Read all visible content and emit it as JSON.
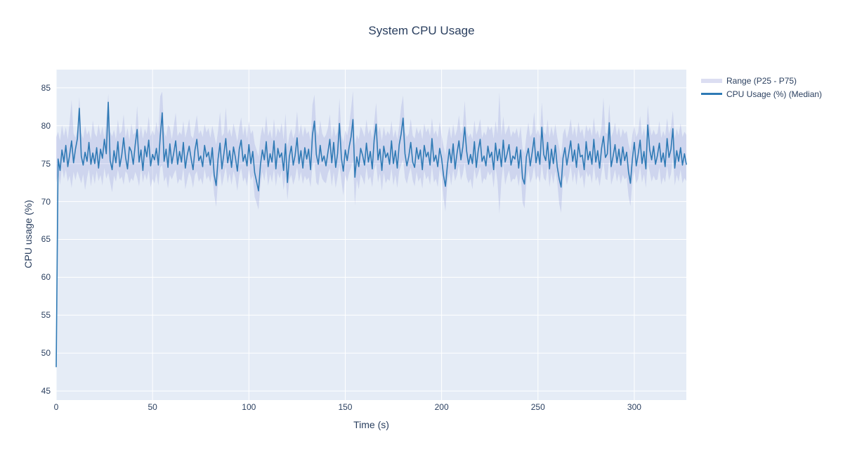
{
  "page": {
    "background": "#ffffff"
  },
  "chart_data": {
    "type": "line",
    "title": "System CPU Usage",
    "xlabel": "Time (s)",
    "ylabel": "CPU usage (%)",
    "x_ticks": [
      0,
      50,
      100,
      150,
      200,
      250,
      300
    ],
    "y_ticks": [
      45,
      50,
      55,
      60,
      65,
      70,
      75,
      80,
      85
    ],
    "x_range": [
      0,
      327
    ],
    "y_range": [
      43.8,
      87.4
    ],
    "grid": true,
    "legend_position": "top-right-outside",
    "colors": {
      "plot_background": "#e5ecf6",
      "gridline": "#ffffff",
      "median_line": "#2f7ab5",
      "band_fill": "rgba(134,141,214,0.24)",
      "band_legend_swatch": "#dcdef2",
      "text": "#2a3f5f"
    },
    "series": [
      {
        "name": "Range (P25 - P75)",
        "type": "band",
        "t_start": 0,
        "t_step": 1,
        "p75": [
          78.5,
          79.2,
          78.0,
          80.1,
          78.6,
          79.8,
          78.2,
          80.5,
          83.4,
          79.0,
          78.4,
          79.6,
          83.8,
          79.1,
          78.3,
          80.0,
          78.8,
          79.4,
          78.1,
          80.7,
          79.0,
          78.5,
          80.2,
          78.7,
          79.9,
          78.3,
          80.4,
          84.2,
          79.2,
          78.6,
          79.5,
          78.2,
          80.8,
          78.9,
          79.3,
          81.5,
          78.4,
          79.7,
          78.0,
          80.3,
          78.8,
          79.1,
          82.6,
          78.5,
          80.0,
          78.3,
          79.6,
          78.9,
          81.2,
          78.6,
          79.4,
          78.7,
          80.5,
          79.0,
          83.9,
          84.5,
          79.3,
          78.5,
          80.1,
          79.8,
          78.2,
          79.9,
          81.7,
          78.6,
          79.2,
          78.8,
          80.6,
          78.4,
          79.5,
          80.9,
          78.7,
          78.3,
          79.8,
          81.4,
          78.9,
          79.4,
          78.5,
          80.2,
          79.1,
          79.7,
          78.4,
          80.0,
          78.8,
          77.5,
          79.3,
          81.8,
          78.6,
          79.0,
          82.4,
          78.9,
          79.6,
          78.5,
          80.3,
          79.2,
          77.9,
          79.8,
          81.1,
          78.7,
          80.0,
          78.3,
          80.6,
          78.9,
          79.4,
          77.6,
          76.8,
          75.9,
          78.5,
          79.9,
          78.8,
          81.3,
          78.6,
          79.5,
          78.2,
          80.9,
          78.4,
          79.7,
          79.0,
          80.4,
          78.1,
          81.6,
          77.2,
          78.8,
          79.6,
          78.3,
          79.1,
          81.9,
          78.7,
          80.2,
          78.5,
          79.9,
          78.9,
          79.3,
          78.0,
          82.8,
          84.1,
          79.5,
          78.6,
          80.7,
          79.0,
          78.4,
          78.8,
          79.7,
          81.5,
          78.3,
          80.0,
          78.6,
          79.2,
          83.6,
          78.9,
          77.8,
          79.4,
          78.7,
          80.1,
          82.2,
          84.6,
          77.4,
          78.8,
          78.2,
          79.9,
          79.3,
          78.5,
          80.8,
          78.9,
          79.6,
          78.3,
          80.4,
          83.0,
          79.1,
          79.8,
          78.0,
          79.9,
          78.6,
          79.3,
          78.8,
          80.6,
          78.4,
          79.5,
          78.2,
          80.0,
          82.5,
          84.0,
          79.2,
          78.5,
          79.0,
          80.9,
          78.7,
          78.3,
          79.8,
          78.9,
          79.6,
          78.2,
          80.3,
          79.1,
          79.7,
          78.6,
          81.0,
          78.8,
          79.4,
          78.4,
          80.5,
          78.7,
          77.3,
          76.1,
          78.5,
          79.9,
          78.3,
          80.2,
          78.6,
          79.5,
          81.4,
          78.9,
          79.8,
          83.3,
          79.3,
          78.5,
          79.0,
          78.2,
          80.7,
          78.8,
          79.6,
          80.9,
          78.4,
          79.2,
          78.7,
          80.0,
          79.4,
          79.9,
          78.3,
          80.6,
          78.9,
          84.4,
          78.6,
          81.2,
          78.8,
          79.5,
          80.1,
          78.5,
          79.3,
          78.9,
          79.7,
          78.3,
          79.9,
          77.0,
          76.4,
          78.7,
          80.4,
          78.5,
          79.1,
          81.8,
          78.8,
          79.5,
          78.6,
          83.1,
          79.2,
          78.8,
          80.8,
          78.4,
          79.9,
          78.6,
          80.2,
          78.5,
          77.1,
          75.8,
          78.9,
          79.7,
          78.3,
          79.4,
          80.9,
          78.7,
          79.9,
          78.4,
          80.5,
          79.0,
          79.6,
          78.2,
          80.1,
          79.2,
          79.8,
          78.6,
          81.1,
          78.8,
          79.4,
          78.3,
          79.9,
          83.7,
          79.1,
          78.9,
          82.9,
          78.5,
          79.2,
          80.4,
          78.7,
          79.8,
          78.4,
          79.6,
          78.9,
          79.3,
          77.7,
          76.6,
          78.8,
          80.0,
          78.5,
          79.1,
          81.3,
          78.6,
          79.7,
          78.2,
          82.7,
          79.9,
          78.7,
          79.5,
          78.8,
          79.0,
          80.6,
          78.4,
          79.3,
          78.6,
          81.0,
          78.9,
          79.8,
          82.0,
          78.3,
          79.6,
          78.7,
          80.3,
          78.5,
          79.2,
          78.8
        ],
        "p25": [
          72.5,
          73.8,
          72.2,
          74.5,
          73.0,
          74.2,
          72.6,
          73.4,
          71.8,
          73.9,
          72.8,
          74.0,
          73.2,
          72.4,
          73.6,
          71.5,
          73.1,
          74.3,
          72.0,
          73.7,
          72.3,
          74.1,
          72.7,
          73.5,
          72.1,
          74.4,
          73.0,
          73.8,
          72.5,
          71.2,
          73.4,
          72.6,
          74.2,
          72.9,
          73.3,
          72.2,
          74.0,
          73.6,
          72.4,
          73.1,
          72.7,
          73.9,
          73.2,
          72.0,
          74.3,
          72.5,
          73.7,
          72.8,
          74.1,
          71.9,
          73.0,
          72.4,
          73.8,
          72.1,
          74.5,
          74.8,
          72.6,
          73.3,
          71.7,
          73.5,
          72.9,
          73.6,
          74.2,
          72.3,
          73.0,
          72.7,
          74.4,
          71.6,
          72.8,
          73.9,
          73.2,
          71.8,
          73.5,
          74.0,
          72.6,
          73.1,
          72.2,
          74.3,
          72.9,
          73.4,
          72.5,
          73.8,
          70.9,
          69.3,
          72.7,
          74.1,
          72.0,
          73.3,
          74.6,
          72.4,
          73.7,
          72.2,
          74.0,
          73.1,
          71.4,
          73.5,
          74.4,
          72.6,
          73.2,
          72.0,
          74.2,
          72.8,
          73.4,
          70.6,
          69.8,
          68.9,
          72.3,
          73.9,
          72.7,
          74.5,
          72.1,
          73.6,
          72.5,
          74.3,
          72.0,
          73.8,
          73.0,
          74.1,
          71.5,
          73.3,
          70.2,
          72.9,
          73.5,
          72.2,
          73.1,
          74.6,
          72.6,
          73.9,
          72.3,
          73.4,
          72.8,
          73.2,
          71.9,
          74.7,
          75.2,
          72.5,
          72.1,
          74.0,
          73.0,
          72.6,
          72.4,
          73.7,
          74.4,
          72.0,
          73.9,
          71.8,
          73.2,
          74.9,
          72.7,
          70.8,
          73.5,
          72.6,
          73.8,
          74.5,
          75.4,
          69.5,
          72.9,
          71.6,
          73.6,
          73.0,
          72.2,
          74.6,
          72.8,
          73.3,
          71.9,
          74.2,
          75.0,
          72.5,
          73.7,
          71.4,
          73.8,
          72.4,
          73.0,
          72.7,
          74.4,
          72.1,
          73.5,
          71.8,
          74.0,
          74.8,
          75.5,
          73.1,
          72.3,
          73.6,
          74.5,
          72.8,
          72.0,
          73.9,
          72.6,
          73.2,
          71.7,
          74.1,
          72.9,
          73.4,
          72.2,
          74.7,
          72.5,
          73.0,
          71.9,
          74.3,
          73.3,
          70.4,
          68.7,
          72.6,
          73.8,
          72.1,
          74.2,
          72.7,
          73.5,
          74.9,
          72.8,
          73.6,
          75.1,
          73.2,
          72.4,
          73.0,
          71.6,
          74.4,
          72.9,
          73.7,
          74.6,
          72.3,
          73.1,
          72.8,
          74.0,
          73.4,
          73.9,
          71.8,
          74.5,
          72.6,
          68.4,
          72.7,
          74.8,
          72.2,
          73.3,
          74.1,
          72.5,
          73.0,
          72.9,
          73.6,
          72.0,
          73.8,
          69.9,
          69.1,
          72.6,
          74.3,
          72.4,
          73.2,
          74.7,
          72.8,
          73.4,
          72.5,
          75.0,
          73.1,
          72.7,
          74.6,
          71.9,
          73.8,
          72.3,
          74.0,
          72.6,
          69.7,
          68.5,
          72.9,
          73.5,
          72.2,
          73.3,
          74.8,
          72.5,
          73.9,
          72.1,
          74.4,
          73.0,
          73.5,
          71.7,
          74.0,
          73.2,
          73.7,
          72.4,
          74.9,
          72.7,
          73.3,
          72.0,
          73.8,
          75.3,
          73.0,
          72.8,
          75.6,
          72.2,
          73.1,
          74.2,
          72.6,
          73.7,
          72.3,
          73.5,
          72.9,
          73.2,
          70.7,
          69.4,
          72.7,
          74.0,
          72.4,
          73.0,
          74.6,
          72.5,
          73.6,
          71.8,
          75.2,
          73.9,
          72.6,
          73.4,
          72.8,
          72.9,
          74.5,
          72.2,
          73.2,
          72.5,
          74.7,
          72.8,
          73.6,
          75.8,
          72.1,
          73.5,
          72.6,
          74.2,
          72.4,
          73.1,
          72.7
        ]
      },
      {
        "name": "CPU Usage (%) (Median)",
        "type": "line",
        "t_start": 0,
        "t_step": 1,
        "values": [
          48.2,
          75.6,
          74.1,
          76.8,
          75.2,
          77.4,
          74.6,
          76.2,
          78.0,
          75.1,
          76.9,
          78.3,
          82.3,
          76.0,
          74.8,
          76.5,
          75.3,
          77.8,
          74.9,
          76.4,
          75.0,
          77.1,
          74.4,
          76.9,
          75.7,
          78.2,
          76.3,
          83.1,
          75.4,
          74.2,
          76.7,
          75.1,
          77.9,
          74.6,
          76.1,
          78.4,
          75.8,
          74.3,
          77.2,
          76.6,
          74.9,
          77.5,
          79.5,
          75.2,
          76.8,
          74.1,
          77.3,
          75.9,
          78.1,
          74.7,
          76.2,
          75.5,
          77.0,
          74.8,
          78.6,
          81.7,
          75.3,
          76.9,
          74.5,
          77.6,
          75.0,
          76.4,
          78.0,
          74.9,
          76.6,
          75.2,
          77.8,
          74.4,
          76.1,
          77.3,
          75.7,
          74.2,
          76.8,
          78.2,
          75.4,
          76.0,
          74.6,
          77.4,
          75.9,
          76.5,
          74.8,
          77.1,
          73.5,
          72.1,
          75.6,
          77.7,
          74.3,
          76.3,
          78.3,
          75.1,
          76.7,
          74.5,
          77.2,
          75.8,
          74.0,
          76.9,
          78.1,
          75.3,
          76.2,
          74.7,
          77.5,
          75.0,
          76.6,
          73.8,
          72.6,
          71.4,
          74.9,
          76.8,
          75.5,
          77.9,
          74.6,
          76.3,
          75.2,
          78.0,
          74.3,
          77.0,
          75.8,
          76.4,
          74.1,
          77.6,
          72.5,
          75.9,
          77.3,
          74.8,
          76.1,
          78.4,
          75.0,
          76.7,
          74.4,
          77.1,
          75.6,
          76.9,
          74.2,
          78.8,
          80.6,
          76.2,
          74.9,
          77.4,
          75.3,
          76.0,
          74.7,
          76.5,
          78.2,
          75.1,
          77.8,
          74.5,
          76.3,
          80.3,
          75.7,
          74.0,
          76.8,
          75.4,
          77.2,
          78.5,
          80.8,
          73.2,
          75.9,
          74.6,
          77.0,
          76.1,
          74.8,
          77.7,
          75.2,
          76.6,
          74.3,
          78.1,
          80.2,
          75.5,
          76.9,
          74.1,
          77.3,
          75.8,
          76.4,
          74.9,
          78.0,
          75.0,
          76.7,
          74.4,
          77.5,
          78.9,
          81.0,
          76.3,
          74.7,
          76.0,
          77.8,
          75.2,
          74.5,
          77.1,
          75.6,
          76.8,
          74.2,
          77.4,
          75.9,
          76.5,
          74.8,
          78.3,
          75.3,
          76.1,
          74.6,
          77.0,
          75.7,
          73.4,
          72.0,
          74.8,
          76.9,
          75.1,
          77.6,
          74.3,
          76.4,
          78.0,
          75.5,
          77.2,
          79.8,
          76.6,
          74.9,
          76.2,
          75.0,
          77.9,
          74.5,
          76.7,
          78.2,
          75.3,
          76.0,
          74.7,
          77.3,
          75.8,
          76.5,
          74.2,
          77.7,
          75.4,
          76.9,
          74.6,
          78.1,
          75.2,
          76.3,
          77.5,
          74.8,
          76.0,
          75.6,
          77.2,
          74.4,
          76.8,
          73.1,
          72.3,
          75.9,
          77.0,
          74.7,
          76.5,
          78.4,
          75.1,
          76.6,
          74.9,
          79.8,
          76.2,
          75.4,
          77.8,
          74.3,
          76.9,
          75.0,
          77.4,
          74.6,
          73.0,
          71.9,
          75.7,
          77.1,
          74.8,
          76.4,
          78.0,
          75.3,
          76.8,
          74.5,
          77.6,
          75.9,
          76.1,
          74.2,
          77.9,
          75.5,
          76.6,
          74.9,
          78.2,
          75.2,
          76.7,
          74.4,
          77.0,
          78.6,
          75.8,
          76.3,
          80.4,
          74.6,
          76.0,
          77.5,
          75.1,
          76.9,
          74.8,
          77.2,
          75.4,
          76.5,
          73.9,
          72.4,
          75.6,
          77.8,
          74.7,
          76.2,
          78.1,
          75.0,
          76.6,
          74.3,
          80.1,
          76.8,
          75.5,
          77.3,
          74.9,
          76.1,
          77.7,
          75.2,
          76.4,
          74.6,
          78.3,
          75.8,
          76.9,
          79.6,
          74.4,
          76.7,
          75.3,
          77.1,
          74.8,
          76.3,
          74.9
        ]
      }
    ]
  }
}
